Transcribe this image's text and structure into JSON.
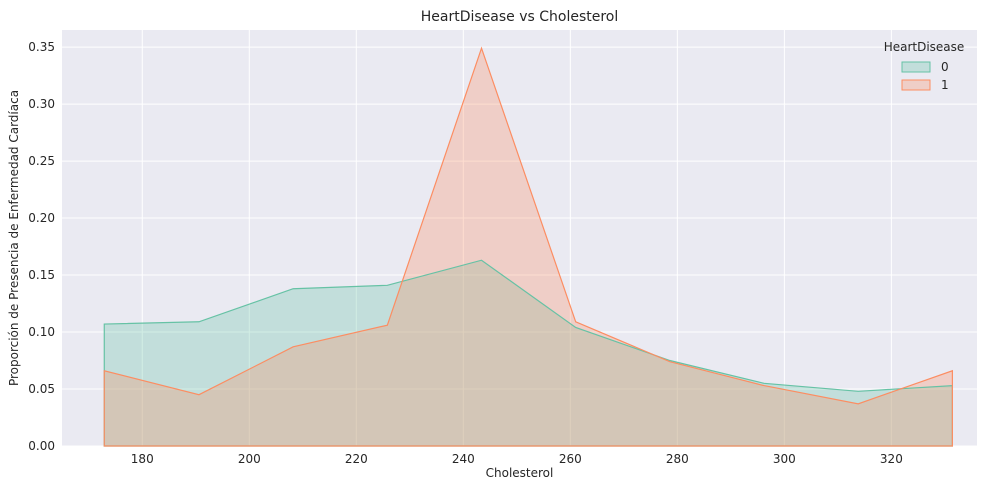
{
  "chart_data": {
    "type": "area",
    "title": "HeartDisease vs Cholesterol",
    "xlabel": "Cholesterol",
    "ylabel": "Proporción de Presencia de Enfermedad Cardíaca",
    "xlim": [
      165,
      336
    ],
    "ylim": [
      0,
      0.365
    ],
    "x_ticks": [
      180,
      200,
      220,
      240,
      260,
      280,
      300,
      320
    ],
    "y_ticks": [
      0.0,
      0.05,
      0.1,
      0.15,
      0.2,
      0.25,
      0.3,
      0.35
    ],
    "y_tick_labels": [
      "0.00",
      "0.05",
      "0.10",
      "0.15",
      "0.20",
      "0.25",
      "0.30",
      "0.35"
    ],
    "x": [
      172.9,
      190.6,
      208.2,
      225.8,
      243.4,
      261.0,
      278.6,
      296.2,
      313.8,
      331.4
    ],
    "legend_title": "HeartDisease",
    "legend_position": "top-right",
    "grid": true,
    "series": [
      {
        "name": "0",
        "color": "#66c2a5",
        "values": [
          0.107,
          0.109,
          0.138,
          0.141,
          0.163,
          0.104,
          0.075,
          0.055,
          0.048,
          0.053
        ]
      },
      {
        "name": "1",
        "color": "#fc8d62",
        "values": [
          0.066,
          0.045,
          0.087,
          0.106,
          0.349,
          0.109,
          0.074,
          0.053,
          0.037,
          0.066
        ]
      }
    ]
  }
}
